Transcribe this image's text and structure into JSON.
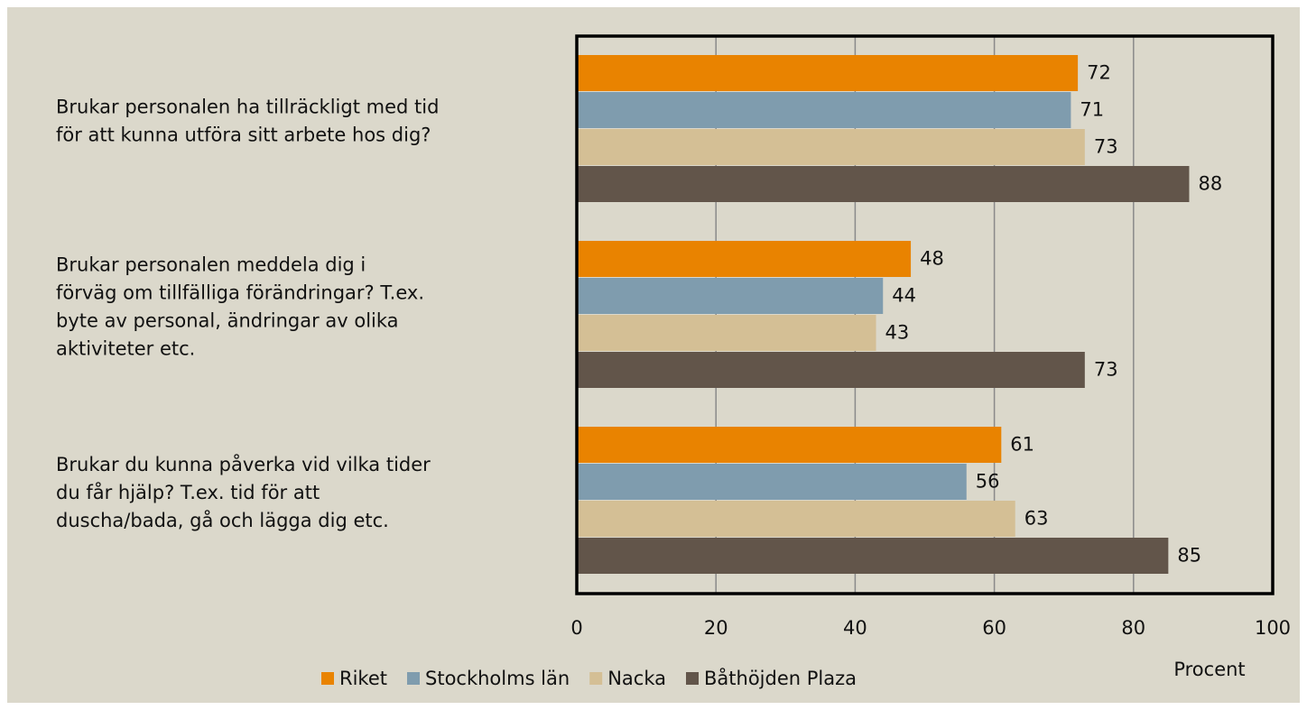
{
  "chart_data": {
    "type": "hbar",
    "categories": [
      [
        "Brukar personalen ha tillräckligt med tid",
        "för att kunna utföra sitt arbete hos dig?"
      ],
      [
        "Brukar personalen meddela dig i",
        "förväg om tillfälliga förändringar? T.ex.",
        "byte av personal, ändringar av olika",
        "aktiviteter etc."
      ],
      [
        "Brukar du kunna påverka vid vilka tider",
        "du får hjälp? T.ex. tid för att",
        "duscha/bada, gå och lägga dig etc."
      ]
    ],
    "series": [
      {
        "name": "Riket",
        "color": "#e98300",
        "values": [
          72,
          48,
          61
        ]
      },
      {
        "name": "Stockholms län",
        "color": "#7f9cae",
        "values": [
          71,
          44,
          56
        ]
      },
      {
        "name": "Nacka",
        "color": "#d4bf95",
        "values": [
          73,
          43,
          63
        ]
      },
      {
        "name": "Båthöjden Plaza",
        "color": "#62554a",
        "values": [
          88,
          73,
          85
        ]
      }
    ],
    "xlabel": "Procent",
    "xlim": [
      0,
      100
    ],
    "xticks": [
      0,
      20,
      40,
      60,
      80,
      100
    ],
    "grid": true,
    "legend": "bottom"
  }
}
